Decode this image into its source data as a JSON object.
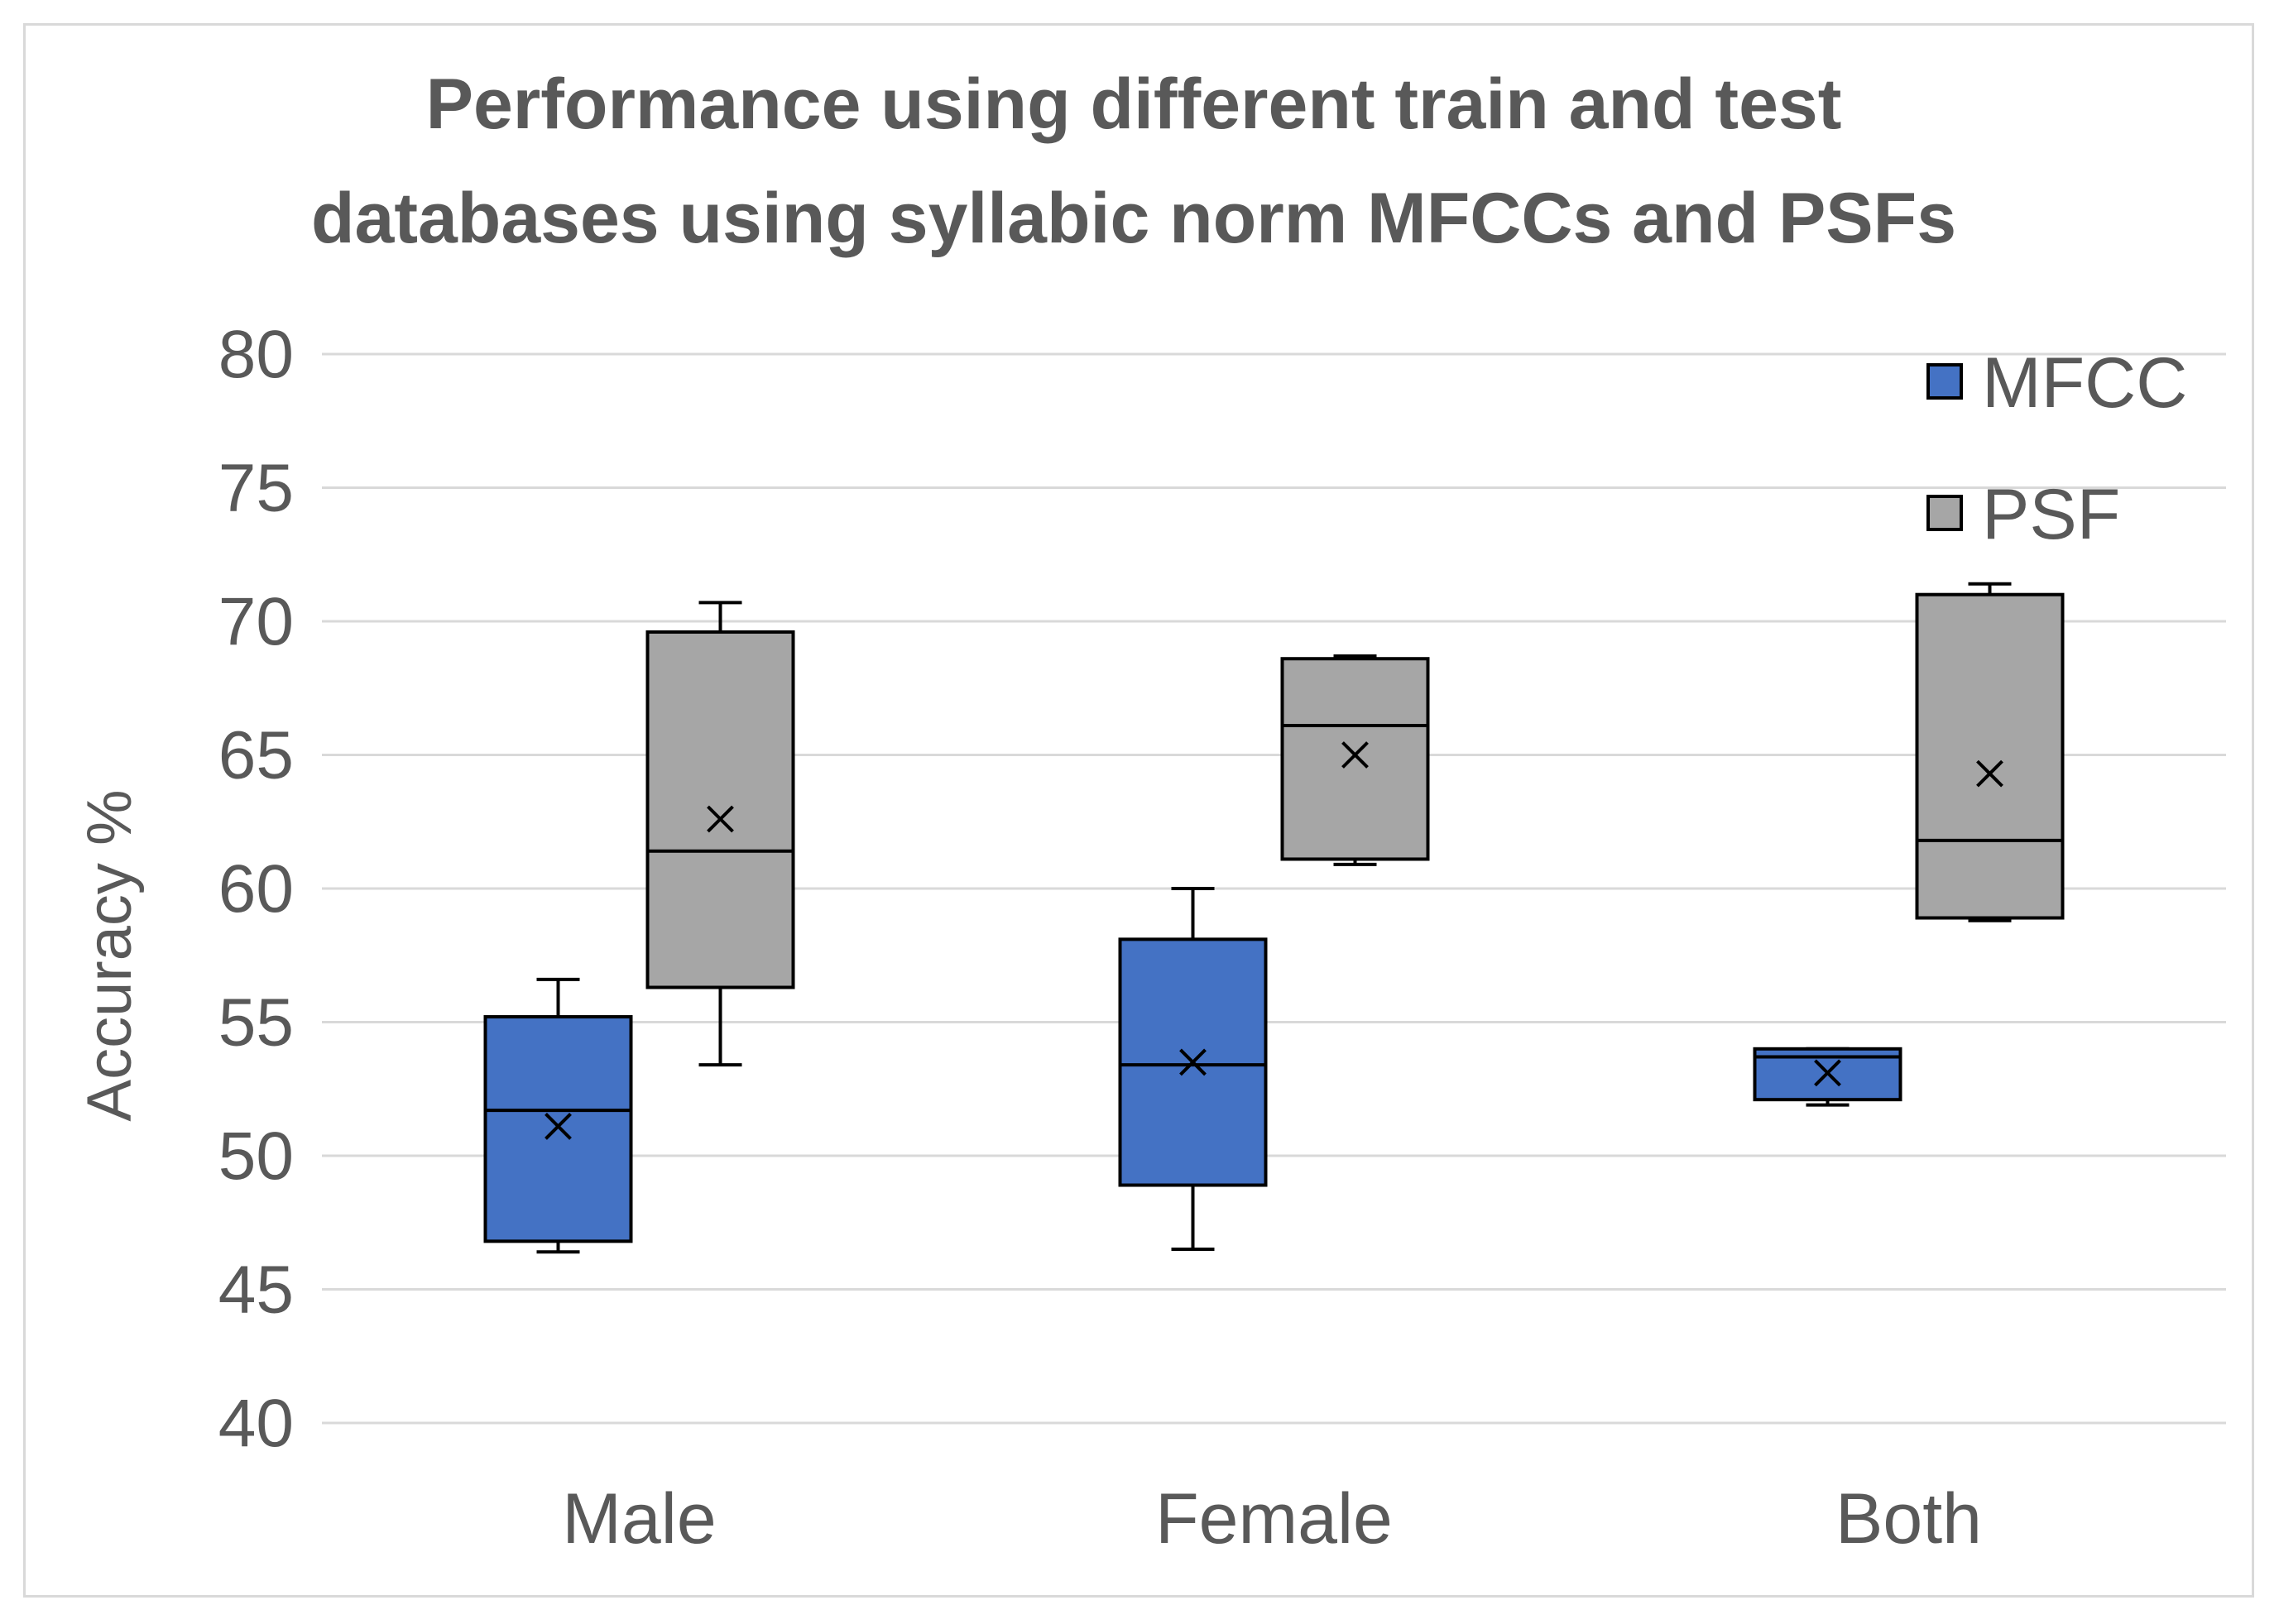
{
  "chart_data": {
    "type": "box",
    "title_lines": [
      "Performance using different train and test",
      "databases using syllabic norm MFCCs and PSFs"
    ],
    "xlabel": "",
    "ylabel": "Accuracy %",
    "ylim": [
      40,
      80
    ],
    "yticks": [
      40,
      45,
      50,
      55,
      60,
      65,
      70,
      75,
      80
    ],
    "ytick_labels": [
      "40",
      "45",
      "50",
      "55",
      "60",
      "65",
      "70",
      "75",
      "80"
    ],
    "grid": true,
    "legend_position": "top-right",
    "categories": [
      "Male",
      "Female",
      "Both"
    ],
    "series": [
      {
        "name": "MFCC",
        "color": "#4472c4",
        "boxes": [
          {
            "min": 46.4,
            "q1": 46.8,
            "median": 51.7,
            "q3": 55.2,
            "max": 56.6,
            "mean": 51.1
          },
          {
            "min": 46.5,
            "q1": 48.9,
            "median": 53.4,
            "q3": 58.1,
            "max": 60.0,
            "mean": 53.5
          },
          {
            "min": 51.9,
            "q1": 52.1,
            "median": 53.7,
            "q3": 54.0,
            "max": 54.0,
            "mean": 53.1
          }
        ]
      },
      {
        "name": "PSF",
        "color": "#a6a6a6",
        "boxes": [
          {
            "min": 53.4,
            "q1": 56.3,
            "median": 61.4,
            "q3": 69.6,
            "max": 70.7,
            "mean": 62.6
          },
          {
            "min": 60.9,
            "q1": 61.1,
            "median": 66.1,
            "q3": 68.6,
            "max": 68.7,
            "mean": 65.0
          },
          {
            "min": 58.8,
            "q1": 58.9,
            "median": 61.8,
            "q3": 71.0,
            "max": 71.4,
            "mean": 64.3
          }
        ]
      }
    ]
  }
}
